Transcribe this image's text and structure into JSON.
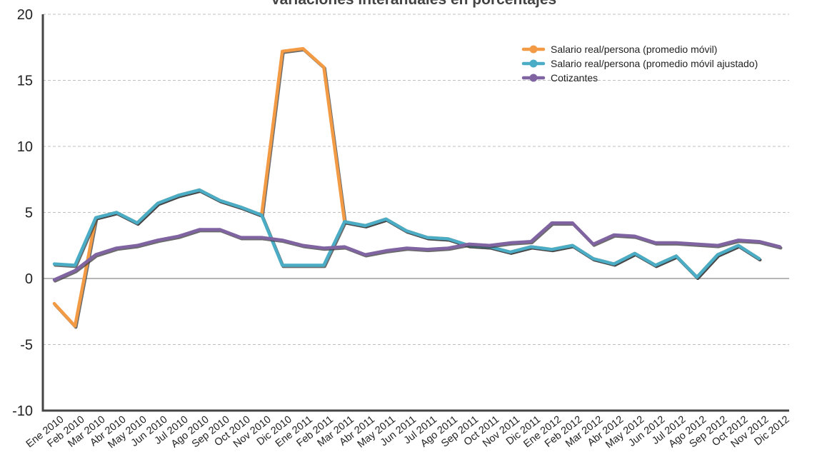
{
  "chart_data": {
    "type": "line",
    "title": "Variaciones interanuales en porcentajes",
    "xlabel": "",
    "ylabel": "",
    "ylim": [
      -10,
      20
    ],
    "yticks": [
      -10,
      -5,
      0,
      5,
      10,
      15,
      20
    ],
    "grid": "horizontal dashed",
    "legend_position": "top-right",
    "categories": [
      "Ene 2010",
      "Feb 2010",
      "Mar 2010",
      "Abr 2010",
      "May 2010",
      "Jun 2010",
      "Jul 2010",
      "Ago 2010",
      "Sep 2010",
      "Oct 2010",
      "Nov 2010",
      "Dic 2010",
      "Ene 2011",
      "Feb 2011",
      "Mar 2011",
      "Abr 2011",
      "May 2011",
      "Jun 2011",
      "Jul 2011",
      "Ago 2011",
      "Sep 2011",
      "Oct 2011",
      "Nov 2011",
      "Dic 2011",
      "Ene 2012",
      "Feb 2012",
      "Mar 2012",
      "Abr 2012",
      "May 2012",
      "Jun 2012",
      "Jul 2012",
      "Ago 2012",
      "Sep 2012",
      "Oct 2012",
      "Nov 2012",
      "Dic 2012"
    ],
    "series": [
      {
        "name": "Salario real/persona (promedio móvil)",
        "color": "#F39A45",
        "values": [
          -1.9,
          -3.6,
          4.6,
          5.0,
          4.2,
          5.7,
          6.3,
          6.7,
          5.9,
          5.4,
          4.8,
          17.2,
          17.4,
          16.0,
          4.3,
          4.0,
          4.5,
          3.6,
          3.1,
          3.0,
          2.5,
          2.4,
          2.0,
          2.4,
          2.2,
          2.5,
          1.5,
          1.1,
          1.9,
          1.0,
          1.7,
          0.1,
          1.8,
          2.5,
          1.5,
          null
        ]
      },
      {
        "name": "Salario real/persona (promedio móvil ajustado)",
        "color": "#4BACC6",
        "values": [
          1.1,
          1.0,
          4.6,
          5.0,
          4.2,
          5.7,
          6.3,
          6.7,
          5.9,
          5.4,
          4.8,
          1.0,
          1.0,
          1.0,
          4.3,
          4.0,
          4.5,
          3.6,
          3.1,
          3.0,
          2.5,
          2.4,
          2.0,
          2.4,
          2.2,
          2.5,
          1.5,
          1.1,
          1.9,
          1.0,
          1.7,
          0.1,
          1.8,
          2.5,
          1.5,
          null
        ]
      },
      {
        "name": "Cotizantes",
        "color": "#8064A2",
        "values": [
          -0.1,
          0.6,
          1.8,
          2.3,
          2.5,
          2.9,
          3.2,
          3.7,
          3.7,
          3.1,
          3.1,
          2.9,
          2.5,
          2.3,
          2.4,
          1.8,
          2.1,
          2.3,
          2.2,
          2.3,
          2.6,
          2.5,
          2.7,
          2.8,
          4.2,
          4.2,
          2.6,
          3.3,
          3.2,
          2.7,
          2.7,
          2.6,
          2.5,
          2.9,
          2.8,
          2.4
        ]
      }
    ]
  }
}
